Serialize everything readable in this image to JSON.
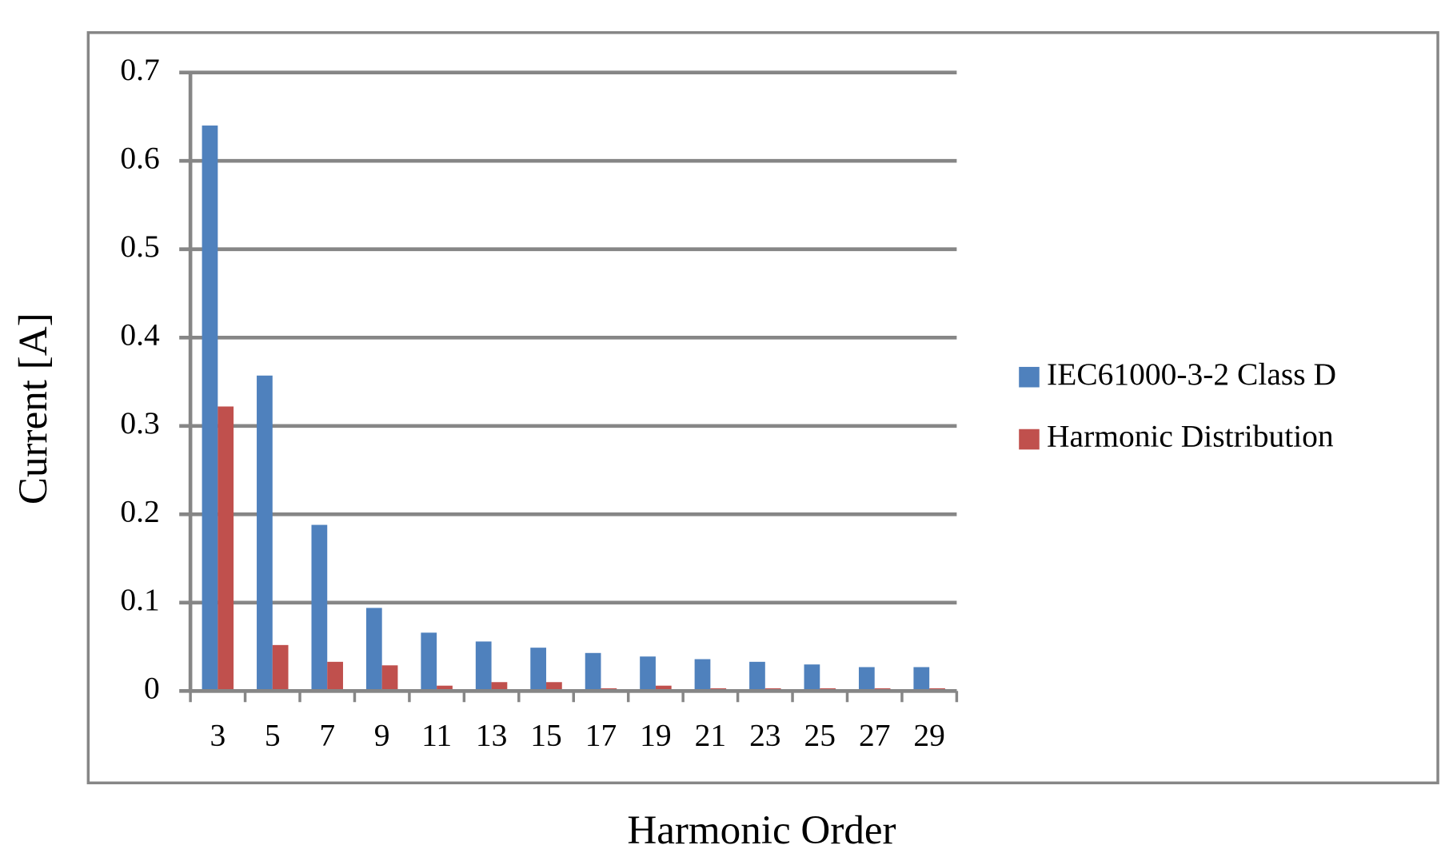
{
  "chart_data": {
    "type": "bar",
    "x_label": "Harmonic Order",
    "y_label": "Current [A]",
    "categories": [
      "3",
      "5",
      "7",
      "9",
      "11",
      "13",
      "15",
      "17",
      "19",
      "21",
      "23",
      "25",
      "27",
      "29"
    ],
    "series": [
      {
        "name": "IEC61000-3-2 Class D",
        "color": "#4f81bd",
        "values": [
          0.64,
          0.357,
          0.188,
          0.094,
          0.066,
          0.056,
          0.049,
          0.043,
          0.039,
          0.036,
          0.033,
          0.03,
          0.027,
          0.027
        ]
      },
      {
        "name": "Harmonic Distribution",
        "color": "#c0504d",
        "values": [
          0.322,
          0.052,
          0.033,
          0.029,
          0.006,
          0.01,
          0.01,
          0.003,
          0.006,
          0.003,
          0.003,
          0.003,
          0.003,
          0.003
        ]
      }
    ],
    "ylim": [
      0,
      0.7
    ],
    "yticks": [
      0,
      0.1,
      0.2,
      0.3,
      0.4,
      0.5,
      0.6,
      0.7
    ],
    "grid": true,
    "legend": "right"
  }
}
